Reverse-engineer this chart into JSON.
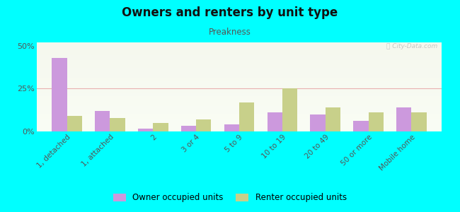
{
  "title": "Owners and renters by unit type",
  "subtitle": "Preakness",
  "categories": [
    "1, detached",
    "1, attached",
    "2",
    "3 or 4",
    "5 to 9",
    "10 to 19",
    "20 to 49",
    "50 or more",
    "Mobile home"
  ],
  "owner_values": [
    43,
    12,
    1.5,
    3.5,
    4,
    11,
    10,
    6,
    14
  ],
  "renter_values": [
    9,
    8,
    5,
    7,
    17,
    25,
    14,
    11,
    11
  ],
  "owner_color": "#cc99dd",
  "renter_color": "#c8d08a",
  "ylim": [
    0,
    52
  ],
  "yticks": [
    0,
    25,
    50
  ],
  "ytick_labels": [
    "0%",
    "25%",
    "50%"
  ],
  "bar_width": 0.35,
  "owner_label": "Owner occupied units",
  "renter_label": "Renter occupied units",
  "bg_color": "#00ffff",
  "watermark": "ⓘ City-Data.com"
}
